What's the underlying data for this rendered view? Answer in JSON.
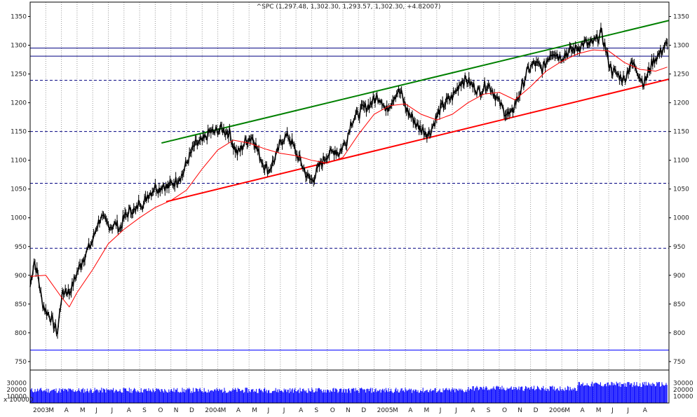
{
  "chart_data": {
    "type": "line",
    "title": "^SPC (1,297.48, 1,302.30, 1,293.57, 1,302.30, +4.82007)",
    "price_axis": {
      "ticks": [
        750,
        800,
        850,
        900,
        950,
        1000,
        1050,
        1100,
        1150,
        1200,
        1250,
        1300,
        1350
      ],
      "ylim": [
        745,
        1375
      ],
      "grid": "vertical dotted",
      "position": "both sides"
    },
    "volume_axis": {
      "ticks": [
        30000,
        20000,
        10000
      ],
      "unit_label": "x 100000",
      "ylim": [
        0,
        40000
      ]
    },
    "x_axis": {
      "start": "2003-02",
      "end": "2006-08",
      "month_labels": [
        "2003",
        "M",
        "A",
        "M",
        "J",
        "J",
        "A",
        "S",
        "O",
        "N",
        "D",
        "2004",
        "M",
        "A",
        "M",
        "J",
        "J",
        "A",
        "S",
        "O",
        "N",
        "D",
        "2005",
        "M",
        "A",
        "M",
        "J",
        "J",
        "A",
        "S",
        "O",
        "N",
        "D",
        "2006",
        "M",
        "A",
        "M",
        "J",
        "J",
        "A"
      ]
    },
    "horizontal_levels": [
      {
        "value": 1295,
        "style": "solid",
        "color": "#000080"
      },
      {
        "value": 1281,
        "style": "solid",
        "color": "#000080"
      },
      {
        "value": 1239,
        "style": "dashed",
        "color": "#000080"
      },
      {
        "value": 1150,
        "style": "dashed",
        "color": "#000080"
      },
      {
        "value": 1060,
        "style": "dashed",
        "color": "#000080"
      },
      {
        "value": 947,
        "style": "dashed",
        "color": "#000080"
      },
      {
        "value": 770,
        "style": "solid",
        "color": "#0000ff"
      }
    ],
    "trendlines": [
      {
        "name": "upper-channel",
        "color": "#008000",
        "from": {
          "month": 8.4,
          "value": 1130
        },
        "to": {
          "month": 42.0,
          "value": 1343
        }
      },
      {
        "name": "lower-channel",
        "color": "#ff0000",
        "from": {
          "month": 8.7,
          "value": 1028
        },
        "to": {
          "month": 42.0,
          "value": 1241
        }
      }
    ],
    "series": [
      {
        "role": "price",
        "color": "#000000",
        "points": [
          [
            0.0,
            880
          ],
          [
            0.25,
            925
          ],
          [
            0.5,
            900
          ],
          [
            0.75,
            855
          ],
          [
            1.0,
            838
          ],
          [
            1.25,
            830
          ],
          [
            1.5,
            815
          ],
          [
            1.75,
            800
          ],
          [
            2.0,
            862
          ],
          [
            2.25,
            875
          ],
          [
            2.5,
            870
          ],
          [
            2.75,
            885
          ],
          [
            3.0,
            905
          ],
          [
            3.25,
            920
          ],
          [
            3.5,
            935
          ],
          [
            3.75,
            948
          ],
          [
            4.0,
            960
          ],
          [
            4.25,
            985
          ],
          [
            4.5,
            1000
          ],
          [
            4.75,
            995
          ],
          [
            5.0,
            988
          ],
          [
            5.25,
            985
          ],
          [
            5.5,
            990
          ],
          [
            5.75,
            980
          ],
          [
            6.0,
            1000
          ],
          [
            6.25,
            1008
          ],
          [
            6.5,
            1015
          ],
          [
            6.75,
            1010
          ],
          [
            7.0,
            1030
          ],
          [
            7.25,
            1022
          ],
          [
            7.5,
            1040
          ],
          [
            7.75,
            1045
          ],
          [
            8.0,
            1055
          ],
          [
            8.25,
            1050
          ],
          [
            8.5,
            1058
          ],
          [
            8.75,
            1052
          ],
          [
            9.0,
            1058
          ],
          [
            9.25,
            1062
          ],
          [
            9.5,
            1070
          ],
          [
            9.75,
            1075
          ],
          [
            10.0,
            1095
          ],
          [
            10.25,
            1110
          ],
          [
            10.5,
            1125
          ],
          [
            10.75,
            1130
          ],
          [
            11.0,
            1132
          ],
          [
            11.25,
            1140
          ],
          [
            11.5,
            1150
          ],
          [
            11.75,
            1148
          ],
          [
            12.0,
            1152
          ],
          [
            12.25,
            1155
          ],
          [
            12.5,
            1150
          ],
          [
            12.75,
            1148
          ],
          [
            13.0,
            1125
          ],
          [
            13.25,
            1112
          ],
          [
            13.5,
            1120
          ],
          [
            13.75,
            1132
          ],
          [
            14.0,
            1138
          ],
          [
            14.25,
            1140
          ],
          [
            14.5,
            1120
          ],
          [
            14.75,
            1103
          ],
          [
            15.0,
            1090
          ],
          [
            15.25,
            1082
          ],
          [
            15.5,
            1095
          ],
          [
            15.75,
            1108
          ],
          [
            16.0,
            1130
          ],
          [
            16.25,
            1140
          ],
          [
            16.5,
            1142
          ],
          [
            16.75,
            1130
          ],
          [
            17.0,
            1112
          ],
          [
            17.25,
            1100
          ],
          [
            17.5,
            1085
          ],
          [
            17.75,
            1070
          ],
          [
            18.0,
            1065
          ],
          [
            18.25,
            1075
          ],
          [
            18.5,
            1090
          ],
          [
            18.75,
            1100
          ],
          [
            19.0,
            1110
          ],
          [
            19.25,
            1112
          ],
          [
            19.5,
            1118
          ],
          [
            19.75,
            1112
          ],
          [
            20.0,
            1125
          ],
          [
            20.25,
            1135
          ],
          [
            20.5,
            1165
          ],
          [
            20.75,
            1175
          ],
          [
            21.0,
            1180
          ],
          [
            21.25,
            1190
          ],
          [
            21.5,
            1192
          ],
          [
            21.75,
            1198
          ],
          [
            22.0,
            1205
          ],
          [
            22.25,
            1210
          ],
          [
            22.5,
            1205
          ],
          [
            22.75,
            1185
          ],
          [
            23.0,
            1198
          ],
          [
            23.25,
            1210
          ],
          [
            23.5,
            1220
          ],
          [
            23.75,
            1215
          ],
          [
            24.0,
            1192
          ],
          [
            24.25,
            1180
          ],
          [
            24.5,
            1172
          ],
          [
            24.75,
            1160
          ],
          [
            25.0,
            1155
          ],
          [
            25.25,
            1150
          ],
          [
            25.5,
            1145
          ],
          [
            25.75,
            1160
          ],
          [
            26.0,
            1175
          ],
          [
            26.25,
            1190
          ],
          [
            26.5,
            1198
          ],
          [
            26.75,
            1205
          ],
          [
            27.0,
            1210
          ],
          [
            27.25,
            1222
          ],
          [
            27.5,
            1235
          ],
          [
            27.75,
            1240
          ],
          [
            28.0,
            1238
          ],
          [
            28.25,
            1230
          ],
          [
            28.5,
            1225
          ],
          [
            28.75,
            1218
          ],
          [
            29.0,
            1228
          ],
          [
            29.25,
            1232
          ],
          [
            29.5,
            1225
          ],
          [
            29.75,
            1212
          ],
          [
            30.0,
            1200
          ],
          [
            30.25,
            1188
          ],
          [
            30.5,
            1180
          ],
          [
            30.75,
            1178
          ],
          [
            31.0,
            1198
          ],
          [
            31.25,
            1212
          ],
          [
            31.5,
            1230
          ],
          [
            31.75,
            1252
          ],
          [
            32.0,
            1262
          ],
          [
            32.25,
            1268
          ],
          [
            32.5,
            1265
          ],
          [
            32.75,
            1258
          ],
          [
            33.0,
            1270
          ],
          [
            33.25,
            1285
          ],
          [
            33.5,
            1290
          ],
          [
            33.75,
            1282
          ],
          [
            34.0,
            1280
          ],
          [
            34.25,
            1285
          ],
          [
            34.5,
            1290
          ],
          [
            34.75,
            1292
          ],
          [
            35.0,
            1295
          ],
          [
            35.25,
            1300
          ],
          [
            35.5,
            1305
          ],
          [
            35.75,
            1300
          ],
          [
            36.0,
            1305
          ],
          [
            36.25,
            1310
          ],
          [
            36.5,
            1322
          ],
          [
            36.75,
            1300
          ],
          [
            37.0,
            1270
          ],
          [
            37.25,
            1255
          ],
          [
            37.5,
            1250
          ],
          [
            37.75,
            1245
          ],
          [
            38.0,
            1240
          ],
          [
            38.25,
            1258
          ],
          [
            38.5,
            1268
          ],
          [
            38.75,
            1262
          ],
          [
            39.0,
            1245
          ],
          [
            39.25,
            1234
          ],
          [
            39.5,
            1250
          ],
          [
            39.75,
            1268
          ],
          [
            40.0,
            1278
          ],
          [
            40.25,
            1285
          ],
          [
            40.5,
            1296
          ],
          [
            40.75,
            1302
          ]
        ]
      },
      {
        "role": "moving-average",
        "color": "#ff0000",
        "points": [
          [
            0.0,
            898
          ],
          [
            1.0,
            900
          ],
          [
            2.0,
            862
          ],
          [
            2.5,
            845
          ],
          [
            3.0,
            870
          ],
          [
            4.0,
            910
          ],
          [
            5.0,
            955
          ],
          [
            6.0,
            980
          ],
          [
            7.0,
            1000
          ],
          [
            8.0,
            1018
          ],
          [
            9.0,
            1030
          ],
          [
            10.0,
            1048
          ],
          [
            11.0,
            1085
          ],
          [
            12.0,
            1118
          ],
          [
            13.0,
            1135
          ],
          [
            14.0,
            1130
          ],
          [
            15.0,
            1120
          ],
          [
            16.0,
            1112
          ],
          [
            17.0,
            1108
          ],
          [
            18.0,
            1100
          ],
          [
            19.0,
            1095
          ],
          [
            20.0,
            1105
          ],
          [
            21.0,
            1145
          ],
          [
            22.0,
            1180
          ],
          [
            23.0,
            1195
          ],
          [
            24.0,
            1198
          ],
          [
            25.0,
            1180
          ],
          [
            26.0,
            1170
          ],
          [
            27.0,
            1180
          ],
          [
            28.0,
            1200
          ],
          [
            29.0,
            1215
          ],
          [
            30.0,
            1218
          ],
          [
            31.0,
            1205
          ],
          [
            32.0,
            1228
          ],
          [
            33.0,
            1255
          ],
          [
            34.0,
            1272
          ],
          [
            35.0,
            1285
          ],
          [
            36.0,
            1292
          ],
          [
            37.0,
            1290
          ],
          [
            38.0,
            1270
          ],
          [
            39.0,
            1258
          ],
          [
            40.0,
            1255
          ],
          [
            40.75,
            1262
          ]
        ]
      }
    ]
  }
}
